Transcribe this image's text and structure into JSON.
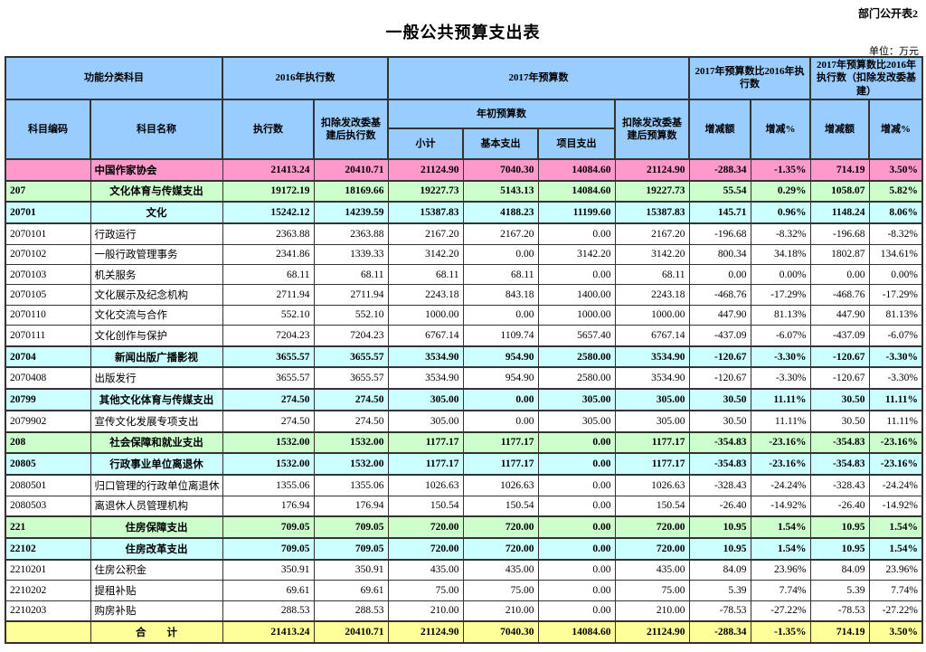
{
  "page": {
    "corner_label": "部门公开表2",
    "title": "一般公共预算支出表",
    "unit_label": "单位：万元"
  },
  "table": {
    "header": {
      "group_function": "功能分类科目",
      "group_exec_2016": "2016年执行数",
      "group_budget_2017": "2017年预算数",
      "group_compare": "2017年预算数比2016年执行数",
      "group_compare_adjusted": "2017年预算数比2016年执行数（扣除发改委基建）",
      "col_code": "科目编码",
      "col_name": "科目名称",
      "col_exec": "执行数",
      "col_exec_adjusted": "扣除发改委基建后执行数",
      "group_initial_budget": "年初预算数",
      "col_subtotal": "小计",
      "col_basic": "基本支出",
      "col_project": "项目支出",
      "col_budget_adjusted": "扣除发改委基建后预算数",
      "col_delta": "增减额",
      "col_pct": "增减%"
    },
    "rows": [
      {
        "style": "org",
        "code": "",
        "name": "中国作家协会",
        "values": [
          "21413.24",
          "20410.71",
          "21124.90",
          "7040.30",
          "14084.60",
          "21124.90",
          "-288.34",
          "-1.35%",
          "714.19",
          "3.50%"
        ]
      },
      {
        "style": "cat1",
        "code": "207",
        "name": "文化体育与传媒支出",
        "values": [
          "19172.19",
          "18169.66",
          "19227.73",
          "5143.13",
          "14084.60",
          "19227.73",
          "55.54",
          "0.29%",
          "1058.07",
          "5.82%"
        ]
      },
      {
        "style": "cat2",
        "code": "20701",
        "name": "文化",
        "values": [
          "15242.12",
          "14239.59",
          "15387.83",
          "4188.23",
          "11199.60",
          "15387.83",
          "145.71",
          "0.96%",
          "1148.24",
          "8.06%"
        ]
      },
      {
        "style": "detail",
        "code": "2070101",
        "name": "行政运行",
        "values": [
          "2363.88",
          "2363.88",
          "2167.20",
          "2167.20",
          "0.00",
          "2167.20",
          "-196.68",
          "-8.32%",
          "-196.68",
          "-8.32%"
        ]
      },
      {
        "style": "detail",
        "code": "2070102",
        "name": "一般行政管理事务",
        "values": [
          "2341.86",
          "1339.33",
          "3142.20",
          "0.00",
          "3142.20",
          "3142.20",
          "800.34",
          "34.18%",
          "1802.87",
          "134.61%"
        ]
      },
      {
        "style": "detail",
        "code": "2070103",
        "name": "机关服务",
        "values": [
          "68.11",
          "68.11",
          "68.11",
          "68.11",
          "0.00",
          "68.11",
          "0.00",
          "0.00%",
          "0.00",
          "0.00%"
        ]
      },
      {
        "style": "detail",
        "code": "2070105",
        "name": "文化展示及纪念机构",
        "values": [
          "2711.94",
          "2711.94",
          "2243.18",
          "843.18",
          "1400.00",
          "2243.18",
          "-468.76",
          "-17.29%",
          "-468.76",
          "-17.29%"
        ]
      },
      {
        "style": "detail",
        "code": "2070110",
        "name": "文化交流与合作",
        "values": [
          "552.10",
          "552.10",
          "1000.00",
          "0.00",
          "1000.00",
          "1000.00",
          "447.90",
          "81.13%",
          "447.90",
          "81.13%"
        ]
      },
      {
        "style": "detail",
        "code": "2070111",
        "name": "文化创作与保护",
        "values": [
          "7204.23",
          "7204.23",
          "6767.14",
          "1109.74",
          "5657.40",
          "6767.14",
          "-437.09",
          "-6.07%",
          "-437.09",
          "-6.07%"
        ]
      },
      {
        "style": "cat2",
        "code": "20704",
        "name": "新闻出版广播影视",
        "values": [
          "3655.57",
          "3655.57",
          "3534.90",
          "954.90",
          "2580.00",
          "3534.90",
          "-120.67",
          "-3.30%",
          "-120.67",
          "-3.30%"
        ]
      },
      {
        "style": "detail",
        "code": "2070408",
        "name": "出版发行",
        "values": [
          "3655.57",
          "3655.57",
          "3534.90",
          "954.90",
          "2580.00",
          "3534.90",
          "-120.67",
          "-3.30%",
          "-120.67",
          "-3.30%"
        ]
      },
      {
        "style": "cat2",
        "code": "20799",
        "name": "其他文化体育与传媒支出",
        "values": [
          "274.50",
          "274.50",
          "305.00",
          "0.00",
          "305.00",
          "305.00",
          "30.50",
          "11.11%",
          "30.50",
          "11.11%"
        ]
      },
      {
        "style": "detail",
        "code": "2079902",
        "name": "宣传文化发展专项支出",
        "values": [
          "274.50",
          "274.50",
          "305.00",
          "0.00",
          "305.00",
          "305.00",
          "30.50",
          "11.11%",
          "30.50",
          "11.11%"
        ]
      },
      {
        "style": "cat1",
        "code": "208",
        "name": "社会保障和就业支出",
        "values": [
          "1532.00",
          "1532.00",
          "1177.17",
          "1177.17",
          "0.00",
          "1177.17",
          "-354.83",
          "-23.16%",
          "-354.83",
          "-23.16%"
        ]
      },
      {
        "style": "cat2",
        "code": "20805",
        "name": "行政事业单位离退休",
        "values": [
          "1532.00",
          "1532.00",
          "1177.17",
          "1177.17",
          "0.00",
          "1177.17",
          "-354.83",
          "-23.16%",
          "-354.83",
          "-23.16%"
        ]
      },
      {
        "style": "detail",
        "code": "2080501",
        "name": "归口管理的行政单位离退休",
        "values": [
          "1355.06",
          "1355.06",
          "1026.63",
          "1026.63",
          "0.00",
          "1026.63",
          "-328.43",
          "-24.24%",
          "-328.43",
          "-24.24%"
        ]
      },
      {
        "style": "detail",
        "code": "2080503",
        "name": "离退休人员管理机构",
        "values": [
          "176.94",
          "176.94",
          "150.54",
          "150.54",
          "0.00",
          "150.54",
          "-26.40",
          "-14.92%",
          "-26.40",
          "-14.92%"
        ]
      },
      {
        "style": "cat1",
        "code": "221",
        "name": "住房保障支出",
        "values": [
          "709.05",
          "709.05",
          "720.00",
          "720.00",
          "0.00",
          "720.00",
          "10.95",
          "1.54%",
          "10.95",
          "1.54%"
        ]
      },
      {
        "style": "cat2",
        "code": "22102",
        "name": "住房改革支出",
        "values": [
          "709.05",
          "709.05",
          "720.00",
          "720.00",
          "0.00",
          "720.00",
          "10.95",
          "1.54%",
          "10.95",
          "1.54%"
        ]
      },
      {
        "style": "detail",
        "code": "2210201",
        "name": "住房公积金",
        "values": [
          "350.91",
          "350.91",
          "435.00",
          "435.00",
          "0.00",
          "435.00",
          "84.09",
          "23.96%",
          "84.09",
          "23.96%"
        ]
      },
      {
        "style": "detail",
        "code": "2210202",
        "name": "提租补贴",
        "values": [
          "69.61",
          "69.61",
          "75.00",
          "75.00",
          "0.00",
          "75.00",
          "5.39",
          "7.74%",
          "5.39",
          "7.74%"
        ]
      },
      {
        "style": "detail",
        "code": "2210203",
        "name": "购房补贴",
        "values": [
          "288.53",
          "288.53",
          "210.00",
          "210.00",
          "0.00",
          "210.00",
          "-78.53",
          "-27.22%",
          "-78.53",
          "-27.22%"
        ]
      },
      {
        "style": "total",
        "code": "",
        "name": "合　　计",
        "values": [
          "21413.24",
          "20410.71",
          "21124.90",
          "7040.30",
          "14084.60",
          "21124.90",
          "-288.34",
          "-1.35%",
          "714.19",
          "3.50%"
        ]
      }
    ]
  }
}
